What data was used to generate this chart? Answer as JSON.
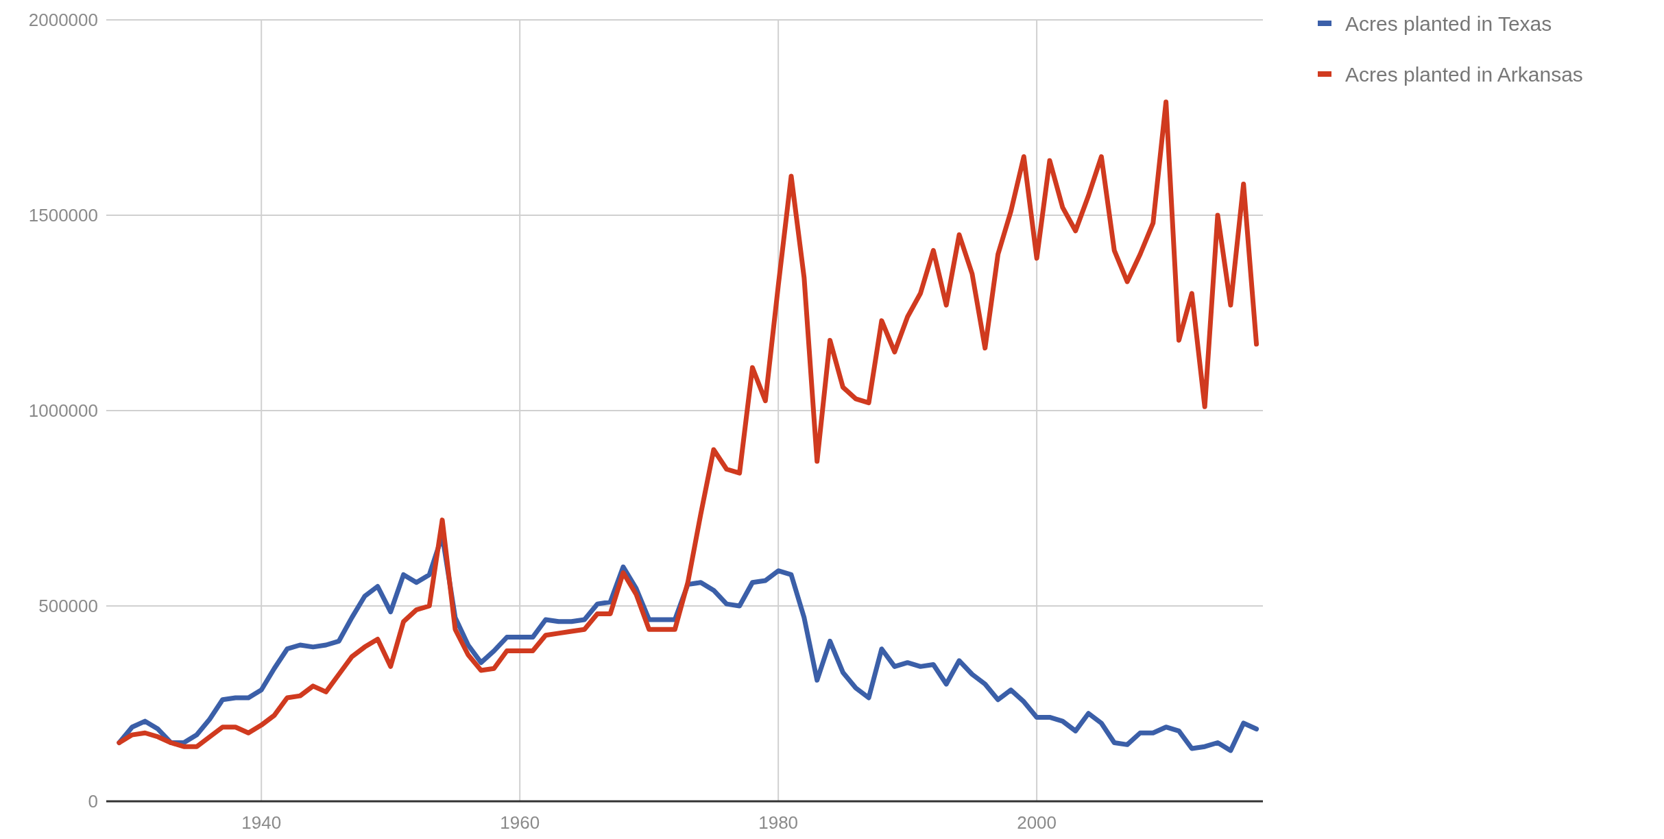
{
  "chart_data": {
    "type": "line",
    "x": [
      1929,
      1930,
      1931,
      1932,
      1933,
      1934,
      1935,
      1936,
      1937,
      1938,
      1939,
      1940,
      1941,
      1942,
      1943,
      1944,
      1945,
      1946,
      1947,
      1948,
      1949,
      1950,
      1951,
      1952,
      1953,
      1954,
      1955,
      1956,
      1957,
      1958,
      1959,
      1960,
      1961,
      1962,
      1963,
      1964,
      1965,
      1966,
      1967,
      1968,
      1969,
      1970,
      1971,
      1972,
      1973,
      1974,
      1975,
      1976,
      1977,
      1978,
      1979,
      1980,
      1981,
      1982,
      1983,
      1984,
      1985,
      1986,
      1987,
      1988,
      1989,
      1990,
      1991,
      1992,
      1993,
      1994,
      1995,
      1996,
      1997,
      1998,
      1999,
      2000,
      2001,
      2002,
      2003,
      2004,
      2005,
      2006,
      2007,
      2008,
      2009,
      2010,
      2011,
      2012,
      2013,
      2014,
      2015,
      2016,
      2017
    ],
    "series": [
      {
        "name": "Acres planted in Texas",
        "color": "#3b5fa8",
        "values": [
          150000,
          190000,
          205000,
          185000,
          150000,
          150000,
          170000,
          210000,
          260000,
          265000,
          265000,
          285000,
          340000,
          390000,
          400000,
          395000,
          400000,
          410000,
          470000,
          525000,
          550000,
          485000,
          580000,
          560000,
          580000,
          680000,
          470000,
          400000,
          355000,
          385000,
          420000,
          420000,
          420000,
          465000,
          460000,
          460000,
          465000,
          505000,
          510000,
          600000,
          545000,
          465000,
          465000,
          465000,
          555000,
          560000,
          540000,
          505000,
          500000,
          560000,
          565000,
          590000,
          580000,
          470000,
          310000,
          410000,
          330000,
          290000,
          265000,
          390000,
          345000,
          355000,
          345000,
          350000,
          300000,
          360000,
          325000,
          300000,
          260000,
          285000,
          255000,
          215000,
          215000,
          205000,
          180000,
          225000,
          200000,
          150000,
          145000,
          175000,
          175000,
          190000,
          180000,
          135000,
          140000,
          150000,
          130000,
          200000,
          185000
        ]
      },
      {
        "name": "Acres planted in Arkansas",
        "color": "#d03a1f",
        "values": [
          150000,
          170000,
          175000,
          165000,
          150000,
          140000,
          140000,
          165000,
          190000,
          190000,
          175000,
          195000,
          220000,
          265000,
          270000,
          295000,
          280000,
          325000,
          370000,
          395000,
          415000,
          345000,
          460000,
          490000,
          500000,
          720000,
          440000,
          375000,
          335000,
          340000,
          385000,
          385000,
          385000,
          425000,
          430000,
          435000,
          440000,
          480000,
          480000,
          585000,
          530000,
          440000,
          440000,
          440000,
          560000,
          735000,
          900000,
          850000,
          840000,
          1110000,
          1025000,
          1320000,
          1600000,
          1340000,
          870000,
          1180000,
          1060000,
          1030000,
          1020000,
          1230000,
          1150000,
          1240000,
          1300000,
          1410000,
          1270000,
          1450000,
          1350000,
          1160000,
          1400000,
          1510000,
          1650000,
          1390000,
          1640000,
          1520000,
          1460000,
          1550000,
          1650000,
          1410000,
          1330000,
          1400000,
          1480000,
          1790000,
          1180000,
          1300000,
          1010000,
          1500000,
          1270000,
          1580000,
          1170000
        ]
      }
    ],
    "xlim": [
      1928,
      2017.5
    ],
    "xticks": [
      1940,
      1960,
      1980,
      2000
    ],
    "ylim": [
      0,
      2000000
    ],
    "yticks": [
      0,
      500000,
      1000000,
      1500000,
      2000000
    ],
    "grid": true,
    "legend": "top right",
    "line_style": "solid",
    "marker": "none"
  }
}
